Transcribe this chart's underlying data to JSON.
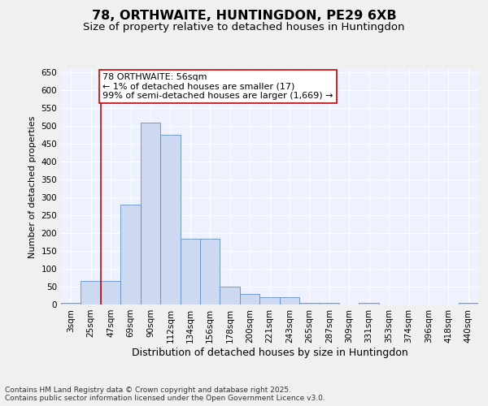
{
  "title_line1": "78, ORTHWAITE, HUNTINGDON, PE29 6XB",
  "title_line2": "Size of property relative to detached houses in Huntingdon",
  "xlabel": "Distribution of detached houses by size in Huntingdon",
  "ylabel": "Number of detached properties",
  "bar_color": "#ccd9f0",
  "bar_edge_color": "#6090c8",
  "categories": [
    "3sqm",
    "25sqm",
    "47sqm",
    "69sqm",
    "90sqm",
    "112sqm",
    "134sqm",
    "156sqm",
    "178sqm",
    "200sqm",
    "221sqm",
    "243sqm",
    "265sqm",
    "287sqm",
    "309sqm",
    "331sqm",
    "353sqm",
    "374sqm",
    "396sqm",
    "418sqm",
    "440sqm"
  ],
  "values": [
    5,
    65,
    65,
    280,
    510,
    475,
    185,
    185,
    50,
    30,
    20,
    20,
    5,
    5,
    0,
    5,
    0,
    0,
    0,
    0,
    5
  ],
  "ylim": [
    0,
    660
  ],
  "yticks": [
    0,
    50,
    100,
    150,
    200,
    250,
    300,
    350,
    400,
    450,
    500,
    550,
    600,
    650
  ],
  "vline_x": 1.5,
  "vline_color": "#cc0000",
  "annotation_text": "78 ORTHWAITE: 56sqm\n← 1% of detached houses are smaller (17)\n99% of semi-detached houses are larger (1,669) →",
  "annotation_box_color": "#ffffff",
  "annotation_box_edge_color": "#cc0000",
  "background_color": "#eef2ff",
  "grid_color": "#ffffff",
  "footer_text": "Contains HM Land Registry data © Crown copyright and database right 2025.\nContains public sector information licensed under the Open Government Licence v3.0.",
  "title_fontsize": 11.5,
  "subtitle_fontsize": 9.5,
  "xlabel_fontsize": 9,
  "ylabel_fontsize": 8,
  "tick_fontsize": 7.5,
  "annotation_fontsize": 8,
  "footer_fontsize": 6.5
}
